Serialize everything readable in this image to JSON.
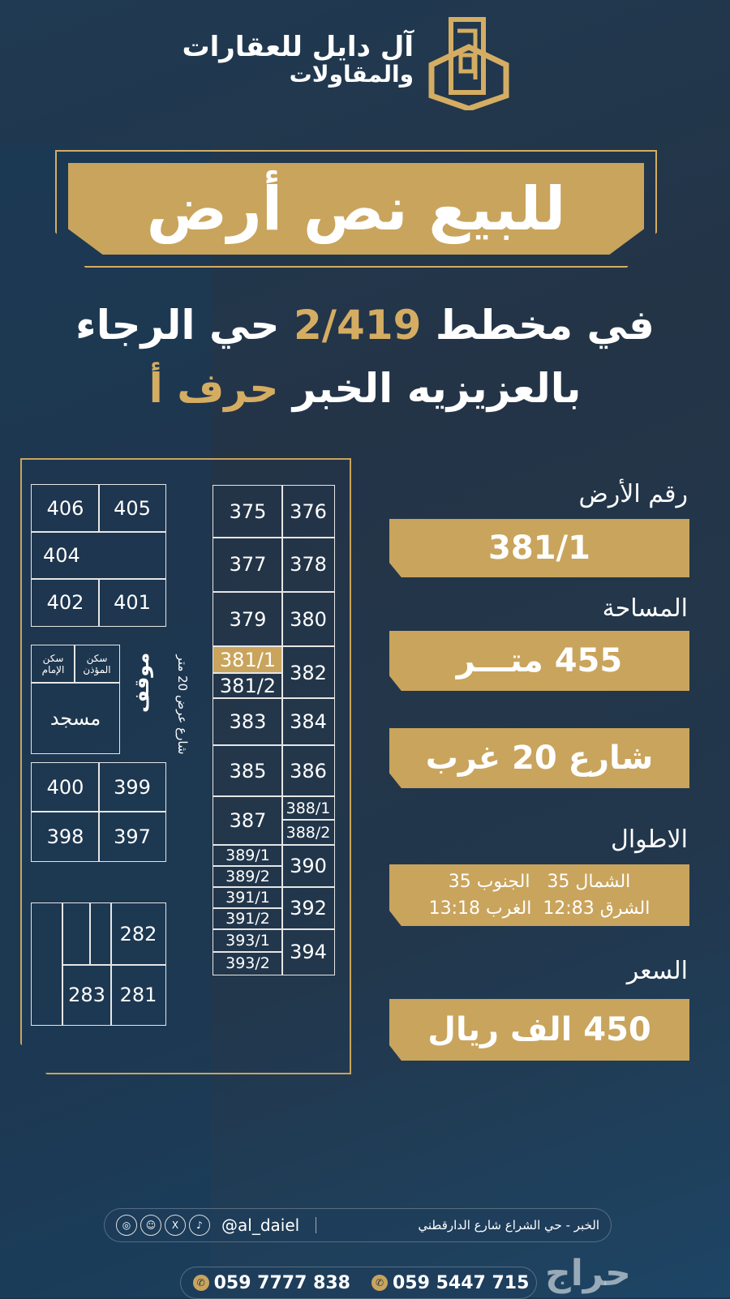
{
  "brand": {
    "name_line1": "آل دايل للعقارات",
    "name_line2": "والمقاولات"
  },
  "headline": "للبيع نص أرض",
  "subtitle": {
    "line1_a": "في مخطط",
    "line1_plan": "2/419",
    "line1_b": "حي الرجاء",
    "line2_a": "بالعزيزيه الخبر",
    "line2_letter": "حرف أ"
  },
  "map": {
    "lots": {
      "406": "406",
      "405": "405",
      "404": "404",
      "402": "402",
      "401": "401",
      "400": "400",
      "399": "399",
      "398": "398",
      "397": "397",
      "282": "282",
      "283": "283",
      "281": "281",
      "375": "375",
      "376": "376",
      "377": "377",
      "378": "378",
      "379": "379",
      "380": "380",
      "381_1": "381/1",
      "381_2": "381/2",
      "382": "382",
      "383": "383",
      "384": "384",
      "385": "385",
      "386": "386",
      "387": "387",
      "388_1": "388/1",
      "388_2": "388/2",
      "389_1": "389/1",
      "389_2": "389/2",
      "390": "390",
      "391_1": "391/1",
      "391_2": "391/2",
      "392": "392",
      "393_1": "393/1",
      "393_2": "393/2",
      "394": "394"
    },
    "imam_housing": "سكن الإمام",
    "muezzin_housing": "سكن المؤذن",
    "mosque": "مسجد",
    "parking": "موقف",
    "street": "شارع عرض 20 متر"
  },
  "details": {
    "plot_label": "رقم الأرض",
    "plot_value": "381/1",
    "area_label": "المساحة",
    "area_value": "455 متـــر",
    "street_value": "شارع 20 غرب",
    "lengths_label": "الاطوال",
    "north": "الشمال 35",
    "south": "الجنوب 35",
    "east": "الشرق 12:83",
    "west": "الغرب 13:18",
    "price_label": "السعر",
    "price_value": "450 الف ريال"
  },
  "footer": {
    "address": "الخبر - حي الشراع شارع الدارقطني",
    "handle": "@al_daiel",
    "phone1": "059 5447 715",
    "phone2": "059 7777 838"
  },
  "watermark": "حراج",
  "colors": {
    "background": "#243447",
    "gold": "#c9a45c"
  }
}
